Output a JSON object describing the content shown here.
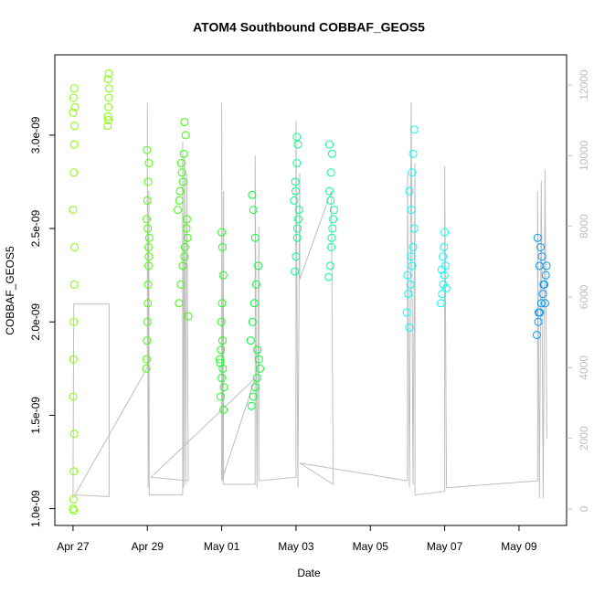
{
  "chart_data": {
    "type": "scatter",
    "title": "ATOM4 Southbound COBBAF_GEOS5",
    "x_label": "Date",
    "y_label": "COBBAF_GEOS5",
    "xlim": [
      -0.49,
      13.28
    ],
    "xticks": [
      {
        "value": 0,
        "label": "Apr 27"
      },
      {
        "value": 2,
        "label": "Apr 29"
      },
      {
        "value": 4,
        "label": "May 01"
      },
      {
        "value": 6,
        "label": "May 03"
      },
      {
        "value": 8,
        "label": "May 05"
      },
      {
        "value": 10,
        "label": "May 07"
      },
      {
        "value": 12,
        "label": "May 09"
      }
    ],
    "ylim": [
      9.1e-10,
      3.43e-09
    ],
    "yticks": [
      {
        "value": 1e-09,
        "label": "1.0e-09"
      },
      {
        "value": 1.5e-09,
        "label": "1.5e-09"
      },
      {
        "value": 2e-09,
        "label": "2.0e-09"
      },
      {
        "value": 2.5e-09,
        "label": "2.5e-09"
      },
      {
        "value": 3e-09,
        "label": "3.0e-09"
      }
    ],
    "y2lim": [
      -465,
      12853
    ],
    "y2ticks": [
      0,
      2000,
      4000,
      6000,
      8000,
      10000,
      12000
    ],
    "series": [
      {
        "color": "#7fff00",
        "style": "points",
        "x": [
          0.0,
          0.01,
          0.02,
          0.03,
          0.0,
          0.01,
          0.02,
          0.03,
          0.04,
          0.0,
          0.02,
          0.03,
          0.04,
          0.05,
          0.01,
          0.03,
          0.0,
          0.02
        ],
        "values": [
          1e-09,
          1.05e-09,
          1.2e-09,
          1.4e-09,
          1.6e-09,
          1.8e-09,
          2e-09,
          2.2e-09,
          2.4e-09,
          2.6e-09,
          2.8e-09,
          2.95e-09,
          3.05e-09,
          3.15e-09,
          3.2e-09,
          3.25e-09,
          3.12e-09,
          9.9e-10
        ]
      },
      {
        "color": "#80ff00",
        "style": "points",
        "x": [
          0.93,
          0.94,
          0.95,
          0.96,
          0.97,
          0.94,
          0.96,
          0.95
        ],
        "values": [
          3.05e-09,
          3.1e-09,
          3.15e-09,
          3.2e-09,
          3.25e-09,
          3.3e-09,
          3.33e-09,
          3.08e-09
        ]
      },
      {
        "color": "#4dff00",
        "style": "points",
        "x": [
          1.97,
          1.98,
          1.99,
          2.0,
          2.01,
          2.02,
          2.03,
          2.04,
          2.05,
          1.98,
          2.0,
          2.02,
          2.04,
          1.99,
          2.01,
          2.03
        ],
        "values": [
          1.75e-09,
          1.8e-09,
          1.9e-09,
          2e-09,
          2.1e-09,
          2.2e-09,
          2.3e-09,
          2.35e-09,
          2.45e-09,
          2.55e-09,
          2.65e-09,
          2.75e-09,
          2.85e-09,
          2.92e-09,
          2.5e-09,
          2.4e-09
        ]
      },
      {
        "color": "#33ff00",
        "style": "points",
        "x": [
          3.1,
          2.85,
          2.9,
          2.95,
          3.0,
          3.05,
          2.82,
          2.88,
          2.93,
          2.98,
          3.03,
          3.0,
          3.08,
          2.86,
          2.96,
          3.06,
          2.91,
          3.01
        ],
        "values": [
          2.03e-09,
          2.1e-09,
          2.2e-09,
          2.3e-09,
          2.35e-09,
          2.5e-09,
          2.6e-09,
          2.7e-09,
          2.8e-09,
          2.9e-09,
          3e-09,
          3.07e-09,
          2.45e-09,
          2.65e-09,
          2.75e-09,
          2.55e-09,
          2.85e-09,
          2.4e-09
        ]
      },
      {
        "color": "#19ff1a",
        "style": "points",
        "x": [
          4.05,
          3.97,
          4.0,
          4.03,
          3.95,
          3.98,
          4.02,
          3.99,
          4.01,
          4.04,
          4.02,
          4.0,
          4.06,
          3.96
        ],
        "values": [
          1.53e-09,
          1.6e-09,
          1.7e-09,
          1.75e-09,
          1.8e-09,
          1.85e-09,
          1.9e-09,
          2e-09,
          2.1e-09,
          2.25e-09,
          2.4e-09,
          2.48e-09,
          1.65e-09,
          1.78e-09
        ]
      },
      {
        "color": "#00ff33",
        "style": "points",
        "x": [
          4.8,
          4.85,
          4.9,
          4.95,
          5.0,
          4.78,
          4.83,
          4.88,
          4.93,
          4.98,
          4.9,
          4.85,
          4.82,
          5.03,
          4.96
        ],
        "values": [
          1.55e-09,
          1.6e-09,
          1.65e-09,
          1.7e-09,
          1.8e-09,
          1.9e-09,
          2e-09,
          2.1e-09,
          2.2e-09,
          2.3e-09,
          2.45e-09,
          2.6e-09,
          2.68e-09,
          1.75e-09,
          1.85e-09
        ]
      },
      {
        "color": "#00ff88",
        "style": "points",
        "x": [
          5.97,
          6.0,
          6.03,
          6.06,
          5.95,
          5.98,
          6.02,
          6.05,
          6.02,
          6.08,
          5.99,
          6.04
        ],
        "values": [
          2.27e-09,
          2.35e-09,
          2.45e-09,
          2.55e-09,
          2.65e-09,
          2.75e-09,
          2.85e-09,
          2.95e-09,
          2.99e-09,
          2.6e-09,
          2.7e-09,
          2.5e-09
        ]
      },
      {
        "color": "#00ff99",
        "style": "points",
        "x": [
          6.88,
          6.92,
          6.95,
          6.98,
          7.02,
          6.9,
          6.94,
          6.97,
          6.9,
          7.0,
          6.93,
          6.96
        ],
        "values": [
          2.24e-09,
          2.3e-09,
          2.4e-09,
          2.5e-09,
          2.6e-09,
          2.7e-09,
          2.8e-09,
          2.9e-09,
          2.95e-09,
          2.55e-09,
          2.65e-09,
          2.45e-09
        ]
      },
      {
        "color": "#00ffff",
        "style": "points",
        "x": [
          9.05,
          8.98,
          9.02,
          9.08,
          9.12,
          9.15,
          9.18,
          9.1,
          9.05,
          9.12,
          9.15,
          9.18,
          9.0,
          9.1
        ],
        "values": [
          1.97e-09,
          2.05e-09,
          2.15e-09,
          2.2e-09,
          2.3e-09,
          2.4e-09,
          2.5e-09,
          2.6e-09,
          2.7e-09,
          2.8e-09,
          2.9e-09,
          3.03e-09,
          2.25e-09,
          2.35e-09
        ]
      },
      {
        "color": "#00ffff",
        "style": "points",
        "x": [
          9.9,
          9.93,
          9.96,
          9.99,
          10.02,
          9.95,
          9.98,
          10.0,
          10.04,
          9.92
        ],
        "values": [
          2.1e-09,
          2.15e-09,
          2.2e-09,
          2.25e-09,
          2.3e-09,
          2.35e-09,
          2.4e-09,
          2.48e-09,
          2.18e-09,
          2.28e-09
        ]
      },
      {
        "color": "#0099ff",
        "style": "points",
        "x": [
          12.48,
          12.52,
          12.56,
          12.6,
          12.64,
          12.68,
          12.72,
          12.55,
          12.62,
          12.58,
          12.5,
          12.7,
          12.66,
          12.74,
          12.53
        ],
        "values": [
          1.93e-09,
          2e-09,
          2.05e-09,
          2.1e-09,
          2.15e-09,
          2.2e-09,
          2.25e-09,
          2.3e-09,
          2.35e-09,
          2.4e-09,
          2.45e-09,
          2.1e-09,
          2.2e-09,
          2.3e-09,
          2.05e-09
        ]
      },
      {
        "color": "#bebebe",
        "style": "line",
        "axis": "y2",
        "x": [
          0.0,
          0.02,
          0.97,
          0.97,
          0.05,
          2.0,
          2.0,
          2.02,
          2.04,
          2.05,
          2.95,
          2.95,
          2.98,
          3.0,
          3.03,
          3.06,
          3.1,
          2.1,
          4.9,
          4.0,
          4.0,
          4.02,
          4.05,
          4.05,
          4.9,
          4.9,
          4.95,
          5.0,
          5.0,
          6.0,
          6.0,
          6.05,
          6.1,
          6.1,
          6.95,
          7.0,
          6.1,
          9.0,
          9.0,
          9.05,
          9.1,
          9.15,
          9.2,
          9.2,
          10.0,
          10.0,
          10.05,
          12.5,
          12.5,
          12.55,
          12.6,
          12.65,
          12.7,
          12.75
        ],
        "values": [
          300,
          5800,
          5800,
          350,
          400,
          4000,
          11500,
          600,
          9000,
          400,
          400,
          10400,
          600,
          10000,
          700,
          9500,
          800,
          900,
          3700,
          800,
          11500,
          800,
          9000,
          700,
          700,
          10000,
          600,
          8000,
          800,
          900,
          11000,
          600,
          9500,
          6500,
          9000,
          700,
          1300,
          800,
          9500,
          600,
          11500,
          700,
          9800,
          400,
          500,
          9700,
          600,
          800,
          9000,
          300,
          9300,
          300,
          9600,
          2000
        ]
      }
    ]
  }
}
